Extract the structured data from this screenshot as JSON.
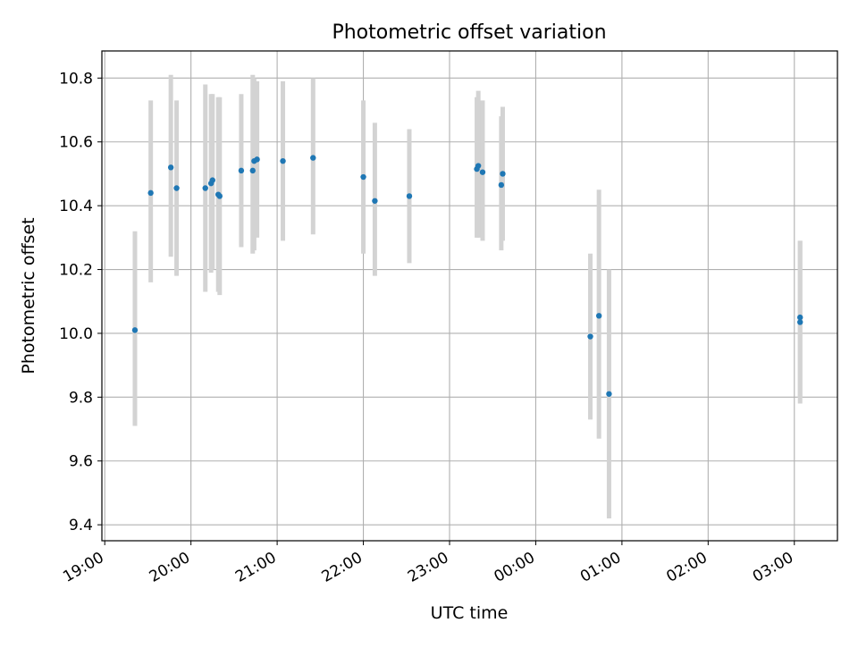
{
  "chart_data": {
    "type": "scatter",
    "title": "Photometric offset variation",
    "xlabel": "UTC time",
    "ylabel": "Photometric offset",
    "x_tick_labels": [
      "19:00",
      "20:00",
      "21:00",
      "22:00",
      "23:00",
      "00:00",
      "01:00",
      "02:00",
      "03:00"
    ],
    "y_tick_labels": [
      "9.4",
      "9.6",
      "9.8",
      "10.0",
      "10.2",
      "10.4",
      "10.6",
      "10.8"
    ],
    "y_ticks": [
      9.4,
      9.6,
      9.8,
      10.0,
      10.2,
      10.4,
      10.6,
      10.8
    ],
    "x_ticks_minutes": [
      0,
      60,
      120,
      180,
      240,
      300,
      360,
      420,
      480
    ],
    "xlim_minutes": [
      -2,
      510
    ],
    "ylim": [
      9.35,
      10.885
    ],
    "grid": true,
    "point_color": "#1f77b4",
    "errorbar_color": "#d3d3d3",
    "points": [
      {
        "t": "19:21",
        "y": 10.01,
        "low": 9.71,
        "high": 10.32
      },
      {
        "t": "19:32",
        "y": 10.44,
        "low": 10.16,
        "high": 10.73
      },
      {
        "t": "19:46",
        "y": 10.52,
        "low": 10.24,
        "high": 10.81
      },
      {
        "t": "19:50",
        "y": 10.455,
        "low": 10.18,
        "high": 10.73
      },
      {
        "t": "20:10",
        "y": 10.455,
        "low": 10.13,
        "high": 10.78
      },
      {
        "t": "20:14",
        "y": 10.47,
        "low": 10.19,
        "high": 10.75
      },
      {
        "t": "20:15",
        "y": 10.48,
        "low": 10.2,
        "high": 10.75
      },
      {
        "t": "20:19",
        "y": 10.435,
        "low": 10.13,
        "high": 10.74
      },
      {
        "t": "20:20",
        "y": 10.43,
        "low": 10.12,
        "high": 10.74
      },
      {
        "t": "20:35",
        "y": 10.51,
        "low": 10.27,
        "high": 10.75
      },
      {
        "t": "20:43",
        "y": 10.51,
        "low": 10.25,
        "high": 10.81
      },
      {
        "t": "20:44",
        "y": 10.54,
        "low": 10.26,
        "high": 10.8
      },
      {
        "t": "20:46",
        "y": 10.545,
        "low": 10.3,
        "high": 10.79
      },
      {
        "t": "21:04",
        "y": 10.54,
        "low": 10.29,
        "high": 10.79
      },
      {
        "t": "21:25",
        "y": 10.55,
        "low": 10.31,
        "high": 10.8
      },
      {
        "t": "22:00",
        "y": 10.49,
        "low": 10.25,
        "high": 10.73
      },
      {
        "t": "22:08",
        "y": 10.415,
        "low": 10.18,
        "high": 10.66
      },
      {
        "t": "22:32",
        "y": 10.43,
        "low": 10.22,
        "high": 10.64
      },
      {
        "t": "23:19",
        "y": 10.515,
        "low": 10.3,
        "high": 10.74
      },
      {
        "t": "23:20",
        "y": 10.525,
        "low": 10.3,
        "high": 10.76
      },
      {
        "t": "23:23",
        "y": 10.505,
        "low": 10.29,
        "high": 10.73
      },
      {
        "t": "23:36",
        "y": 10.465,
        "low": 10.26,
        "high": 10.68
      },
      {
        "t": "23:37",
        "y": 10.5,
        "low": 10.29,
        "high": 10.71
      },
      {
        "t": "00:38",
        "y": 9.99,
        "low": 9.73,
        "high": 10.25
      },
      {
        "t": "00:44",
        "y": 10.055,
        "low": 9.67,
        "high": 10.45
      },
      {
        "t": "00:51",
        "y": 9.81,
        "low": 9.42,
        "high": 10.2
      },
      {
        "t": "03:04",
        "y": 10.035,
        "low": 9.78,
        "high": 10.29
      },
      {
        "t": "03:04",
        "y": 10.05,
        "low": 9.8,
        "high": 10.29
      }
    ]
  }
}
